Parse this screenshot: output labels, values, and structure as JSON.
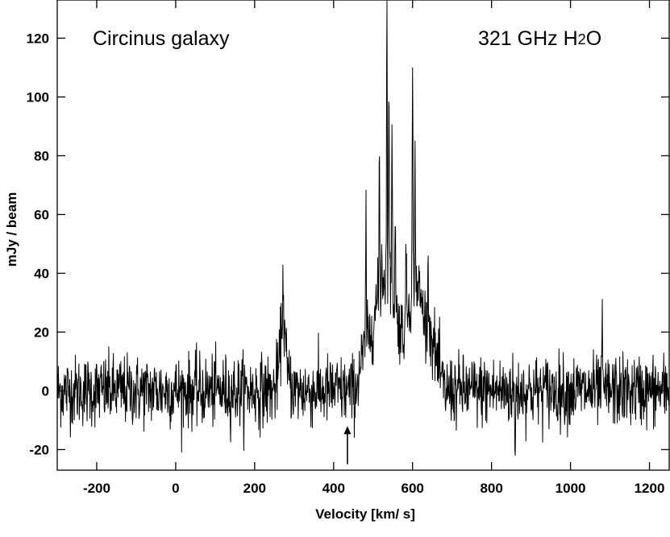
{
  "chart_data": {
    "type": "line",
    "xlabel": "Velocity [km/ s]",
    "ylabel": "mJy / beam",
    "xlim": [
      -300,
      1250
    ],
    "ylim": [
      -27,
      133
    ],
    "x_ticks": [
      -200,
      0,
      200,
      400,
      600,
      800,
      1000,
      1200
    ],
    "y_ticks": [
      -20,
      0,
      20,
      40,
      60,
      80,
      100,
      120
    ],
    "grid": false,
    "annotations": {
      "source": "Circinus galaxy",
      "line_prefix": "321 GHz H",
      "line_subscript": "2",
      "line_suffix": "O"
    },
    "arrow_marker": {
      "x": 435,
      "y_tip": -12,
      "y_tail": -25
    },
    "series": [
      {
        "noise_rms": 6,
        "channel_width_kms": 0.9,
        "profile": [
          {
            "x": -300,
            "y": 0
          },
          {
            "x": 250,
            "y": 0
          },
          {
            "x": 262,
            "y": 8
          },
          {
            "x": 272,
            "y": 30
          },
          {
            "x": 282,
            "y": 6
          },
          {
            "x": 300,
            "y": 0
          },
          {
            "x": 455,
            "y": 0
          },
          {
            "x": 470,
            "y": 10
          },
          {
            "x": 490,
            "y": 18
          },
          {
            "x": 510,
            "y": 30
          },
          {
            "x": 530,
            "y": 40
          },
          {
            "x": 545,
            "y": 35
          },
          {
            "x": 560,
            "y": 25
          },
          {
            "x": 575,
            "y": 20
          },
          {
            "x": 590,
            "y": 30
          },
          {
            "x": 610,
            "y": 38
          },
          {
            "x": 630,
            "y": 25
          },
          {
            "x": 650,
            "y": 18
          },
          {
            "x": 665,
            "y": 8
          },
          {
            "x": 680,
            "y": 0
          },
          {
            "x": 1250,
            "y": 0
          }
        ],
        "peaks": [
          {
            "x": 272,
            "y": 37
          },
          {
            "x": 482,
            "y": 62
          },
          {
            "x": 516,
            "y": 81
          },
          {
            "x": 522,
            "y": 47
          },
          {
            "x": 535,
            "y": 132
          },
          {
            "x": 540,
            "y": 111
          },
          {
            "x": 548,
            "y": 97
          },
          {
            "x": 556,
            "y": 63
          },
          {
            "x": 584,
            "y": 47
          },
          {
            "x": 600,
            "y": 109
          },
          {
            "x": 606,
            "y": 78
          },
          {
            "x": 640,
            "y": 52
          },
          {
            "x": 1080,
            "y": 21
          },
          {
            "x": 860,
            "y": -24
          }
        ]
      }
    ]
  }
}
